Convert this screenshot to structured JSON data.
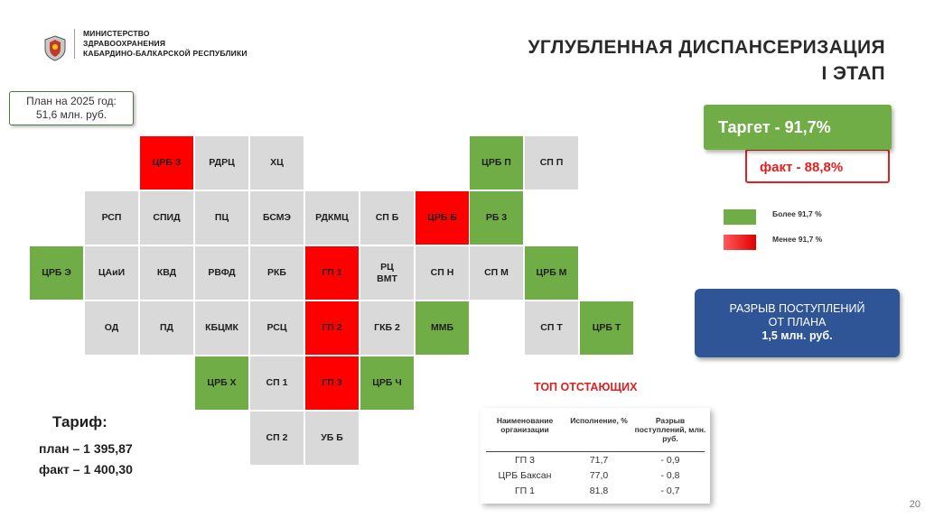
{
  "header": {
    "org_lines": [
      "МИНИСТЕРСТВО",
      "ЗДРАВООХРАНЕНИЯ",
      "КАБАРДИНО-БАЛКАРСКОЙ РЕСПУБЛИКИ"
    ],
    "title_line1": "УГЛУБЛЕННАЯ ДИСПАНСЕРИЗАЦИЯ",
    "title_line2": "I ЭТАП"
  },
  "plan_box": {
    "line1": "План на 2025 год:",
    "line2": "51,6 млн. руб."
  },
  "grid": [
    {
      "label": "ЦРБ З",
      "status": "red"
    },
    {
      "label": "РДРЦ",
      "status": "gray"
    },
    {
      "label": "ХЦ",
      "status": "gray"
    },
    {
      "label": "ЦРБ П",
      "status": "green"
    },
    {
      "label": "СП П",
      "status": "gray"
    },
    {
      "label": "РСП",
      "status": "gray"
    },
    {
      "label": "СПИД",
      "status": "gray"
    },
    {
      "label": "ПЦ",
      "status": "gray"
    },
    {
      "label": "БСМЭ",
      "status": "gray"
    },
    {
      "label": "РДКМЦ",
      "status": "gray"
    },
    {
      "label": "СП Б",
      "status": "gray"
    },
    {
      "label": "ЦРБ Б",
      "status": "red"
    },
    {
      "label": "РБ 3",
      "status": "green"
    },
    {
      "label": "ЦРБ Э",
      "status": "green"
    },
    {
      "label": "ЦАиИ",
      "status": "gray"
    },
    {
      "label": "КВД",
      "status": "gray"
    },
    {
      "label": "РВФД",
      "status": "gray"
    },
    {
      "label": "РКБ",
      "status": "gray"
    },
    {
      "label": "ГП 1",
      "status": "red"
    },
    {
      "label": "РЦ ВМТ",
      "status": "gray"
    },
    {
      "label": "СП Н",
      "status": "gray"
    },
    {
      "label": "СП М",
      "status": "gray"
    },
    {
      "label": "ЦРБ М",
      "status": "green"
    },
    {
      "label": "ОД",
      "status": "gray"
    },
    {
      "label": "ПД",
      "status": "gray"
    },
    {
      "label": "КБЦМК",
      "status": "gray"
    },
    {
      "label": "РСЦ",
      "status": "gray"
    },
    {
      "label": "ГП 2",
      "status": "red"
    },
    {
      "label": "ГКБ 2",
      "status": "gray"
    },
    {
      "label": "ММБ",
      "status": "green"
    },
    {
      "label": "СП Т",
      "status": "gray"
    },
    {
      "label": "ЦРБ Т",
      "status": "green"
    },
    {
      "label": "ЦРБ Х",
      "status": "green"
    },
    {
      "label": "СП 1",
      "status": "gray"
    },
    {
      "label": "ГП 3",
      "status": "red"
    },
    {
      "label": "ЦРБ Ч",
      "status": "green"
    },
    {
      "label": "СП 2",
      "status": "gray"
    },
    {
      "label": "УБ Б",
      "status": "gray"
    }
  ],
  "target": {
    "label": "Таргет  -  91,7%",
    "fact": "факт  -  88,8%"
  },
  "legend": [
    {
      "label": "Более 91,7 %",
      "color": "#70ad47"
    },
    {
      "label": "Менее 91,7 %",
      "color": "#ff0000"
    }
  ],
  "gap": {
    "line1": "РАЗРЫВ ПОСТУПЛЕНИЙ",
    "line2": "ОТ ПЛАНА",
    "line3": "1,5 млн. руб."
  },
  "top_lagging": {
    "title": "ТОП ОТСТАЮЩИХ",
    "headers": [
      "Наименование организации",
      "Исполнение, %",
      "Разрыв поступлений, млн. руб."
    ],
    "rows": [
      [
        "ГП 3",
        "71,7",
        "- 0,9"
      ],
      [
        "ЦРБ Баксан",
        "77,0",
        "- 0,8"
      ],
      [
        "ГП 1",
        "81,8",
        "- 0,7"
      ]
    ]
  },
  "tariff": {
    "heading": "Тариф:",
    "plan": "план – 1 395,87",
    "fact": "факт – 1 400,30"
  },
  "page_number": "20",
  "colors": {
    "red": "#ff0000",
    "green": "#70ad47",
    "gray": "#d9d9d9",
    "blue_box": "#2f5597"
  }
}
